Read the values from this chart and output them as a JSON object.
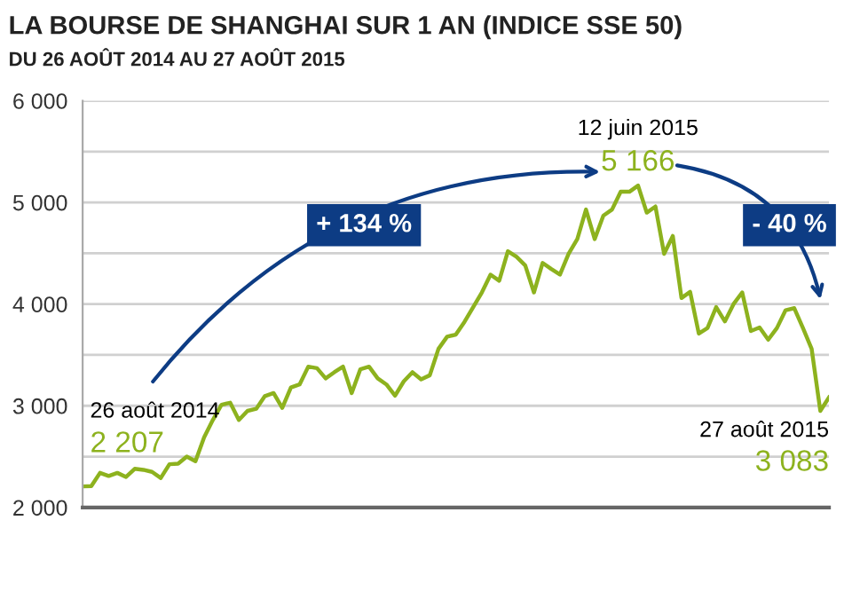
{
  "chart_data": {
    "type": "line",
    "title": "LA BOURSE DE SHANGHAI SUR 1 AN (INDICE SSE 50)",
    "subtitle": "DU 26 AOÛT 2014 AU 27 AOÛT 2015",
    "categories": [
      null,
      null,
      null,
      null,
      null,
      null,
      null,
      null,
      null,
      null,
      null,
      null,
      null,
      null,
      null,
      null,
      null,
      null,
      null,
      null,
      null,
      null,
      null,
      null,
      null,
      null,
      null,
      null,
      null,
      null,
      null,
      null,
      null,
      null,
      null,
      null,
      null,
      null,
      null,
      null,
      null,
      null,
      null,
      null,
      null,
      null,
      null,
      null,
      null,
      null,
      null,
      null,
      null,
      null,
      null,
      null,
      null,
      null,
      null,
      null,
      null,
      null,
      null,
      null,
      null,
      null,
      null,
      null,
      null,
      null,
      null,
      null,
      null,
      null,
      null,
      null,
      null,
      null,
      null,
      null,
      null,
      null,
      null,
      null,
      null,
      null,
      null
    ],
    "series": [
      {
        "color": "#8db21e",
        "values": [
          2207,
          2210,
          2340,
          2310,
          2340,
          2300,
          2380,
          2370,
          2350,
          2290,
          2425,
          2430,
          2500,
          2455,
          2690,
          2860,
          3010,
          3030,
          2860,
          2950,
          2970,
          3095,
          3125,
          2980,
          3180,
          3210,
          3385,
          3370,
          3270,
          3330,
          3385,
          3125,
          3360,
          3385,
          3270,
          3210,
          3100,
          3240,
          3330,
          3260,
          3300,
          3560,
          3680,
          3700,
          3825,
          3970,
          4115,
          4290,
          4230,
          4520,
          4465,
          4380,
          4115,
          4405,
          4345,
          4290,
          4495,
          4640,
          4930,
          4640,
          4870,
          4930,
          5105,
          5105,
          5166,
          4900,
          4960,
          4495,
          4670,
          4060,
          4120,
          3710,
          3765,
          3970,
          3830,
          4000,
          4115,
          3735,
          3770,
          3650,
          3765,
          3940,
          3960,
          3765,
          3560,
          2950,
          3083
        ]
      }
    ],
    "ylim": [
      2000,
      6000
    ],
    "yticks": [
      {
        "value": 2000,
        "label": "2 000"
      },
      {
        "value": 2500,
        "label": null
      },
      {
        "value": 3000,
        "label": "3 000"
      },
      {
        "value": 3500,
        "label": null
      },
      {
        "value": 4000,
        "label": "4 000"
      },
      {
        "value": 4500,
        "label": null
      },
      {
        "value": 5000,
        "label": "5 000"
      },
      {
        "value": 5500,
        "label": null
      },
      {
        "value": 6000,
        "label": "6 000"
      }
    ],
    "tick_labels": "y",
    "grid": "y",
    "legend": false,
    "annotations": [
      "26 août 2014",
      "2 207",
      "12 juin 2015",
      "5 166",
      "27 août 2015",
      "3 083",
      "+ 134 %",
      "- 40 %"
    ]
  }
}
